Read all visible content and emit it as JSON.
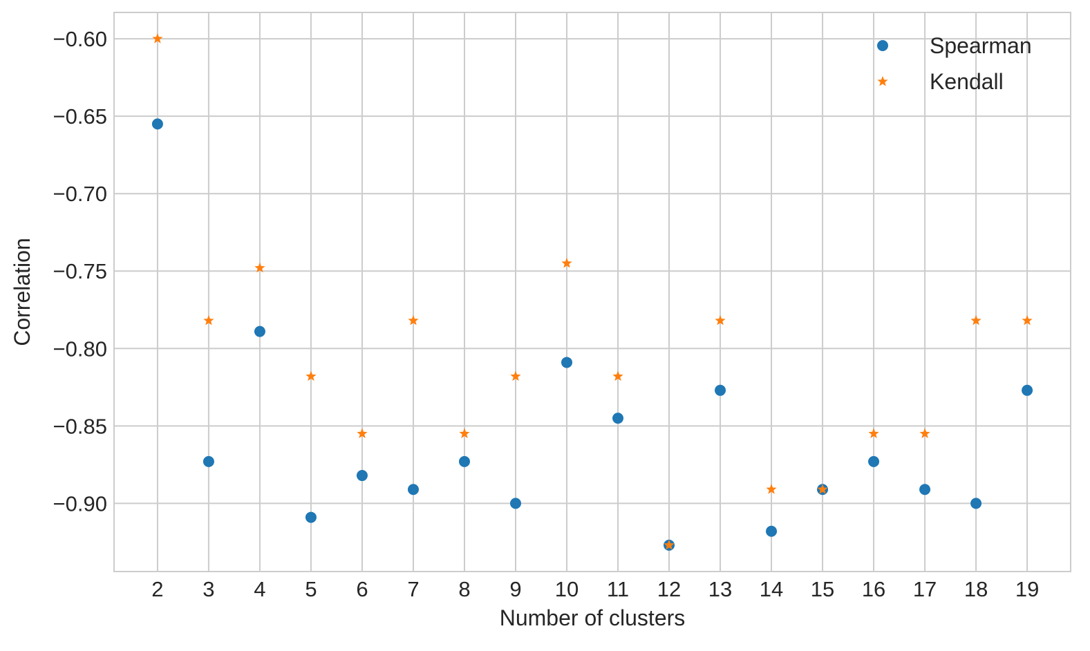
{
  "chart_data": {
    "type": "scatter",
    "title": "",
    "xlabel": "Number of clusters",
    "ylabel": "Correlation",
    "x": [
      2,
      3,
      4,
      5,
      6,
      7,
      8,
      9,
      10,
      11,
      12,
      13,
      14,
      15,
      16,
      17,
      18,
      19
    ],
    "xticks": [
      "2",
      "3",
      "4",
      "5",
      "6",
      "7",
      "8",
      "9",
      "10",
      "11",
      "12",
      "13",
      "14",
      "15",
      "16",
      "17",
      "18",
      "19"
    ],
    "xlim": [
      1.15,
      19.85
    ],
    "ylim": [
      -0.944,
      -0.583
    ],
    "yticks": [
      -0.6,
      -0.65,
      -0.7,
      -0.75,
      -0.8,
      -0.85,
      -0.9
    ],
    "ytick_labels": [
      "−0.60",
      "−0.65",
      "−0.70",
      "−0.75",
      "−0.80",
      "−0.85",
      "−0.90"
    ],
    "grid": true,
    "legend": "top-right",
    "series": [
      {
        "name": "Spearman",
        "marker": "circle",
        "color": "#1f77b4",
        "values": [
          -0.655,
          -0.873,
          -0.789,
          -0.909,
          -0.882,
          -0.891,
          -0.873,
          -0.9,
          -0.809,
          -0.845,
          -0.927,
          -0.827,
          -0.918,
          -0.891,
          -0.873,
          -0.891,
          -0.9,
          -0.827
        ]
      },
      {
        "name": "Kendall",
        "marker": "star",
        "color": "#ff7f0e",
        "values": [
          -0.6,
          -0.782,
          -0.748,
          -0.818,
          -0.855,
          -0.782,
          -0.855,
          -0.818,
          -0.745,
          -0.818,
          -0.927,
          -0.782,
          -0.891,
          -0.891,
          -0.855,
          -0.855,
          -0.782,
          -0.782
        ]
      }
    ]
  }
}
